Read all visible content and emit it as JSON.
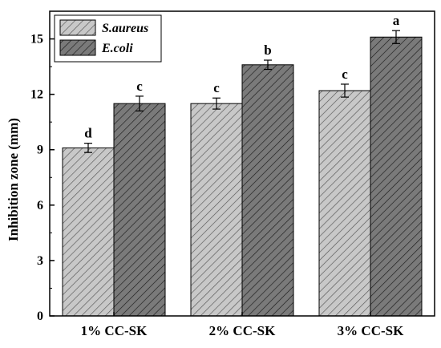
{
  "chart_data": {
    "type": "bar",
    "title": "",
    "xlabel": "",
    "ylabel": "Inhibition zone (mm)",
    "ylim": [
      0,
      16.5
    ],
    "yticks": [
      0,
      3,
      6,
      9,
      12,
      15
    ],
    "grid": false,
    "legend_position": "top-left",
    "categories": [
      "1% CC-SK",
      "2% CC-SK",
      "3% CC-SK"
    ],
    "series": [
      {
        "name": "S.aureus",
        "values": [
          9.1,
          11.5,
          12.2
        ],
        "errors": [
          0.25,
          0.3,
          0.35
        ],
        "significance": [
          "d",
          "c",
          "c"
        ],
        "fill": "#c8c8c8",
        "hatch": "#555555"
      },
      {
        "name": "E.coli",
        "values": [
          11.5,
          13.6,
          15.1
        ],
        "errors": [
          0.4,
          0.25,
          0.35
        ],
        "significance": [
          "c",
          "b",
          "a"
        ],
        "fill": "#7a7a7a",
        "hatch": "#1a1a1a"
      }
    ]
  }
}
